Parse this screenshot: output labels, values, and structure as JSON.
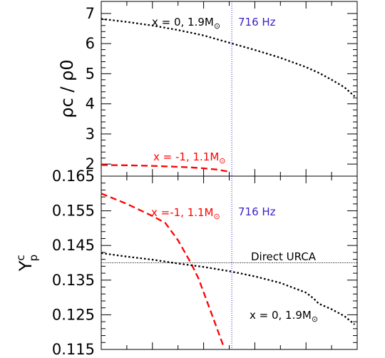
{
  "chart_data": [
    {
      "type": "line",
      "ylabel": "ρc / ρ0",
      "ylim": [
        1.6,
        7.4
      ],
      "xlim": [
        0,
        1
      ],
      "yticks": [
        2,
        3,
        4,
        5,
        6,
        7
      ],
      "ytick_labels": [
        "2",
        "3",
        "4",
        "5",
        "6",
        "7"
      ],
      "vline": {
        "x": 0.51,
        "label": "716 Hz",
        "color": "#3a1fc8"
      },
      "series": [
        {
          "name": "x = 0, 1.9M⊙",
          "label_main": "x = 0, 1.9M",
          "label_sym": "⊙",
          "color": "#000000",
          "style": "dotted",
          "x": [
            0.0,
            0.1,
            0.2,
            0.3,
            0.4,
            0.5,
            0.6,
            0.7,
            0.8,
            0.85,
            0.9,
            0.95,
            0.99
          ],
          "y": [
            6.82,
            6.72,
            6.6,
            6.45,
            6.27,
            6.03,
            5.79,
            5.53,
            5.22,
            5.03,
            4.8,
            4.55,
            4.25
          ]
        },
        {
          "name": "x = -1, 1.1M⊙",
          "label_main": "x = -1,  1.1M",
          "label_sym": "⊙",
          "color": "#ff0000",
          "style": "dashed",
          "x": [
            0.0,
            0.1,
            0.2,
            0.3,
            0.35,
            0.4,
            0.45,
            0.5
          ],
          "y": [
            1.97,
            1.96,
            1.94,
            1.91,
            1.89,
            1.86,
            1.82,
            1.75
          ]
        }
      ]
    },
    {
      "type": "line",
      "ylabel_main": "Y",
      "ylabel_sup": "c",
      "ylabel_sub": "p",
      "ylim": [
        0.115,
        0.165
      ],
      "xlim": [
        0,
        1
      ],
      "yticks": [
        0.115,
        0.125,
        0.135,
        0.145,
        0.155,
        0.165
      ],
      "ytick_labels": [
        "0.115",
        "0.125",
        "0.135",
        "0.145",
        "0.155",
        "0.165"
      ],
      "vline": {
        "x": 0.51,
        "label": "716 Hz",
        "color": "#3a1fc8"
      },
      "hline": {
        "y": 0.14,
        "label": "Direct URCA",
        "color": "#000000"
      },
      "series": [
        {
          "name": "x =-1,  1.1M⊙",
          "label_main": "x =-1,  1.1M",
          "label_sym": "⊙",
          "color": "#ff0000",
          "style": "dashed",
          "x": [
            0.0,
            0.1,
            0.2,
            0.25,
            0.3,
            0.35,
            0.38,
            0.4,
            0.42,
            0.44,
            0.46,
            0.48
          ],
          "y": [
            0.16,
            0.157,
            0.1535,
            0.1515,
            0.1465,
            0.14,
            0.1355,
            0.1315,
            0.1275,
            0.1235,
            0.1195,
            0.1155
          ]
        },
        {
          "name": "x = 0, 1.9M⊙",
          "label_main": "x = 0, 1.9M",
          "label_sym": "⊙",
          "color": "#000000",
          "style": "dotted",
          "x": [
            0.0,
            0.1,
            0.2,
            0.3,
            0.4,
            0.5,
            0.6,
            0.7,
            0.8,
            0.83,
            0.85,
            0.9,
            0.95,
            0.99
          ],
          "y": [
            0.1428,
            0.1418,
            0.1409,
            0.1398,
            0.1388,
            0.1376,
            0.1361,
            0.1342,
            0.1314,
            0.1297,
            0.1282,
            0.1266,
            0.1246,
            0.1222
          ]
        }
      ]
    }
  ]
}
